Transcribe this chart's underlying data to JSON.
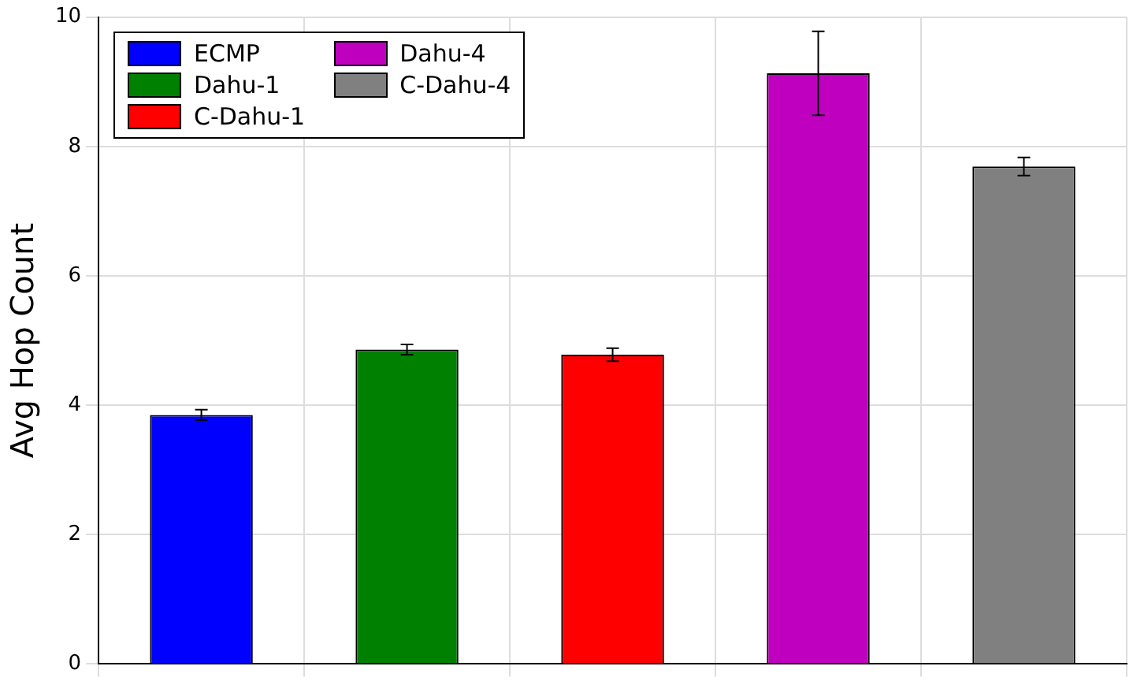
{
  "chart_data": {
    "type": "bar",
    "ylabel": "Avg Hop Count",
    "categories": [
      null,
      null,
      null,
      null,
      null
    ],
    "series": [
      {
        "name": "ECMP",
        "color": "#0000ff",
        "values": [
          3.85,
          null,
          null,
          null,
          null
        ],
        "errors": [
          0.08,
          null,
          null,
          null,
          null
        ]
      },
      {
        "name": "Dahu-1",
        "color": "#008000",
        "values": [
          null,
          4.86,
          null,
          null,
          null
        ],
        "errors": [
          null,
          0.08,
          null,
          null,
          null
        ]
      },
      {
        "name": "C-Dahu-1",
        "color": "#ff0000",
        "values": [
          null,
          null,
          4.78,
          null,
          null
        ],
        "errors": [
          null,
          null,
          0.1,
          null,
          null
        ]
      },
      {
        "name": "Dahu-4",
        "color": "#bf00bf",
        "values": [
          null,
          null,
          null,
          9.13,
          null
        ],
        "errors": [
          null,
          null,
          null,
          0.65,
          null
        ]
      },
      {
        "name": "C-Dahu-4",
        "color": "#808080",
        "values": [
          null,
          null,
          null,
          null,
          7.69
        ],
        "errors": [
          null,
          null,
          null,
          null,
          0.14
        ]
      }
    ],
    "ylim": [
      0,
      10
    ],
    "yticks": [
      0,
      2,
      4,
      6,
      8,
      10
    ],
    "grid": true,
    "legend": "top left",
    "tick_labels": "y"
  }
}
